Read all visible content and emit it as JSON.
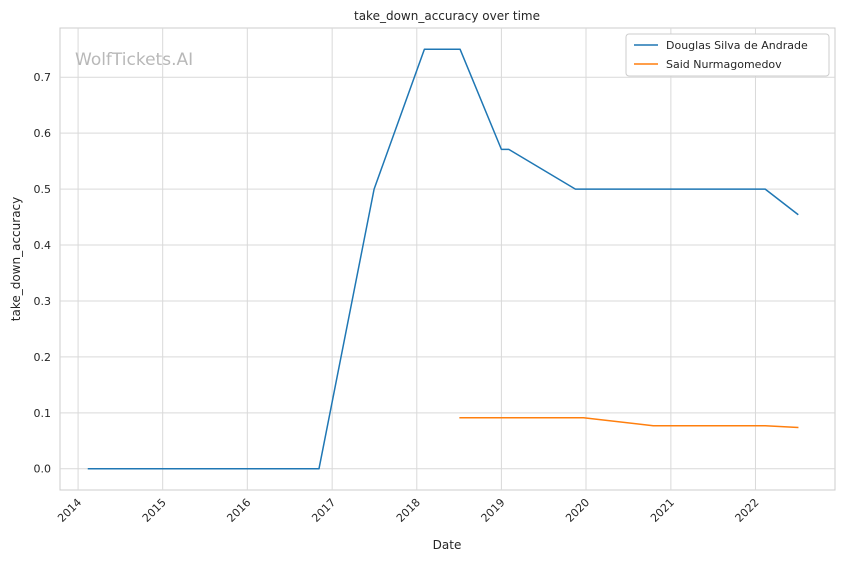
{
  "chart_data": {
    "type": "line",
    "title": "take_down_accuracy over time",
    "xlabel": "Date",
    "ylabel": "take_down_accuracy",
    "watermark": "WolfTickets.AI",
    "x_tick_labels": [
      "2014",
      "2015",
      "2016",
      "2017",
      "2018",
      "2019",
      "2020",
      "2021",
      "2022"
    ],
    "y_tick_labels": [
      "0.0",
      "0.1",
      "0.2",
      "0.3",
      "0.4",
      "0.5",
      "0.6",
      "0.7"
    ],
    "xlim": [
      "2013-10-15",
      "2022-12-10"
    ],
    "ylim": [
      -0.038,
      0.788
    ],
    "grid": true,
    "legend_position": "top-right",
    "series": [
      {
        "name": "Douglas Silva de Andrade",
        "color": "#1f77b4",
        "points": [
          [
            "2014-02-15",
            0.0
          ],
          [
            "2016-11-05",
            0.0
          ],
          [
            "2017-07-01",
            0.5
          ],
          [
            "2018-02-03",
            0.75
          ],
          [
            "2018-07-07",
            0.75
          ],
          [
            "2019-01-01",
            0.571
          ],
          [
            "2019-02-02",
            0.571
          ],
          [
            "2019-11-16",
            0.5
          ],
          [
            "2022-02-12",
            0.5
          ],
          [
            "2022-07-02",
            0.455
          ]
        ]
      },
      {
        "name": "Said Nurmagomedov",
        "color": "#ff7f0e",
        "points": [
          [
            "2018-07-07",
            0.091
          ],
          [
            "2019-12-21",
            0.091
          ],
          [
            "2020-10-17",
            0.077
          ],
          [
            "2022-02-12",
            0.077
          ],
          [
            "2022-07-02",
            0.074
          ]
        ]
      }
    ]
  }
}
